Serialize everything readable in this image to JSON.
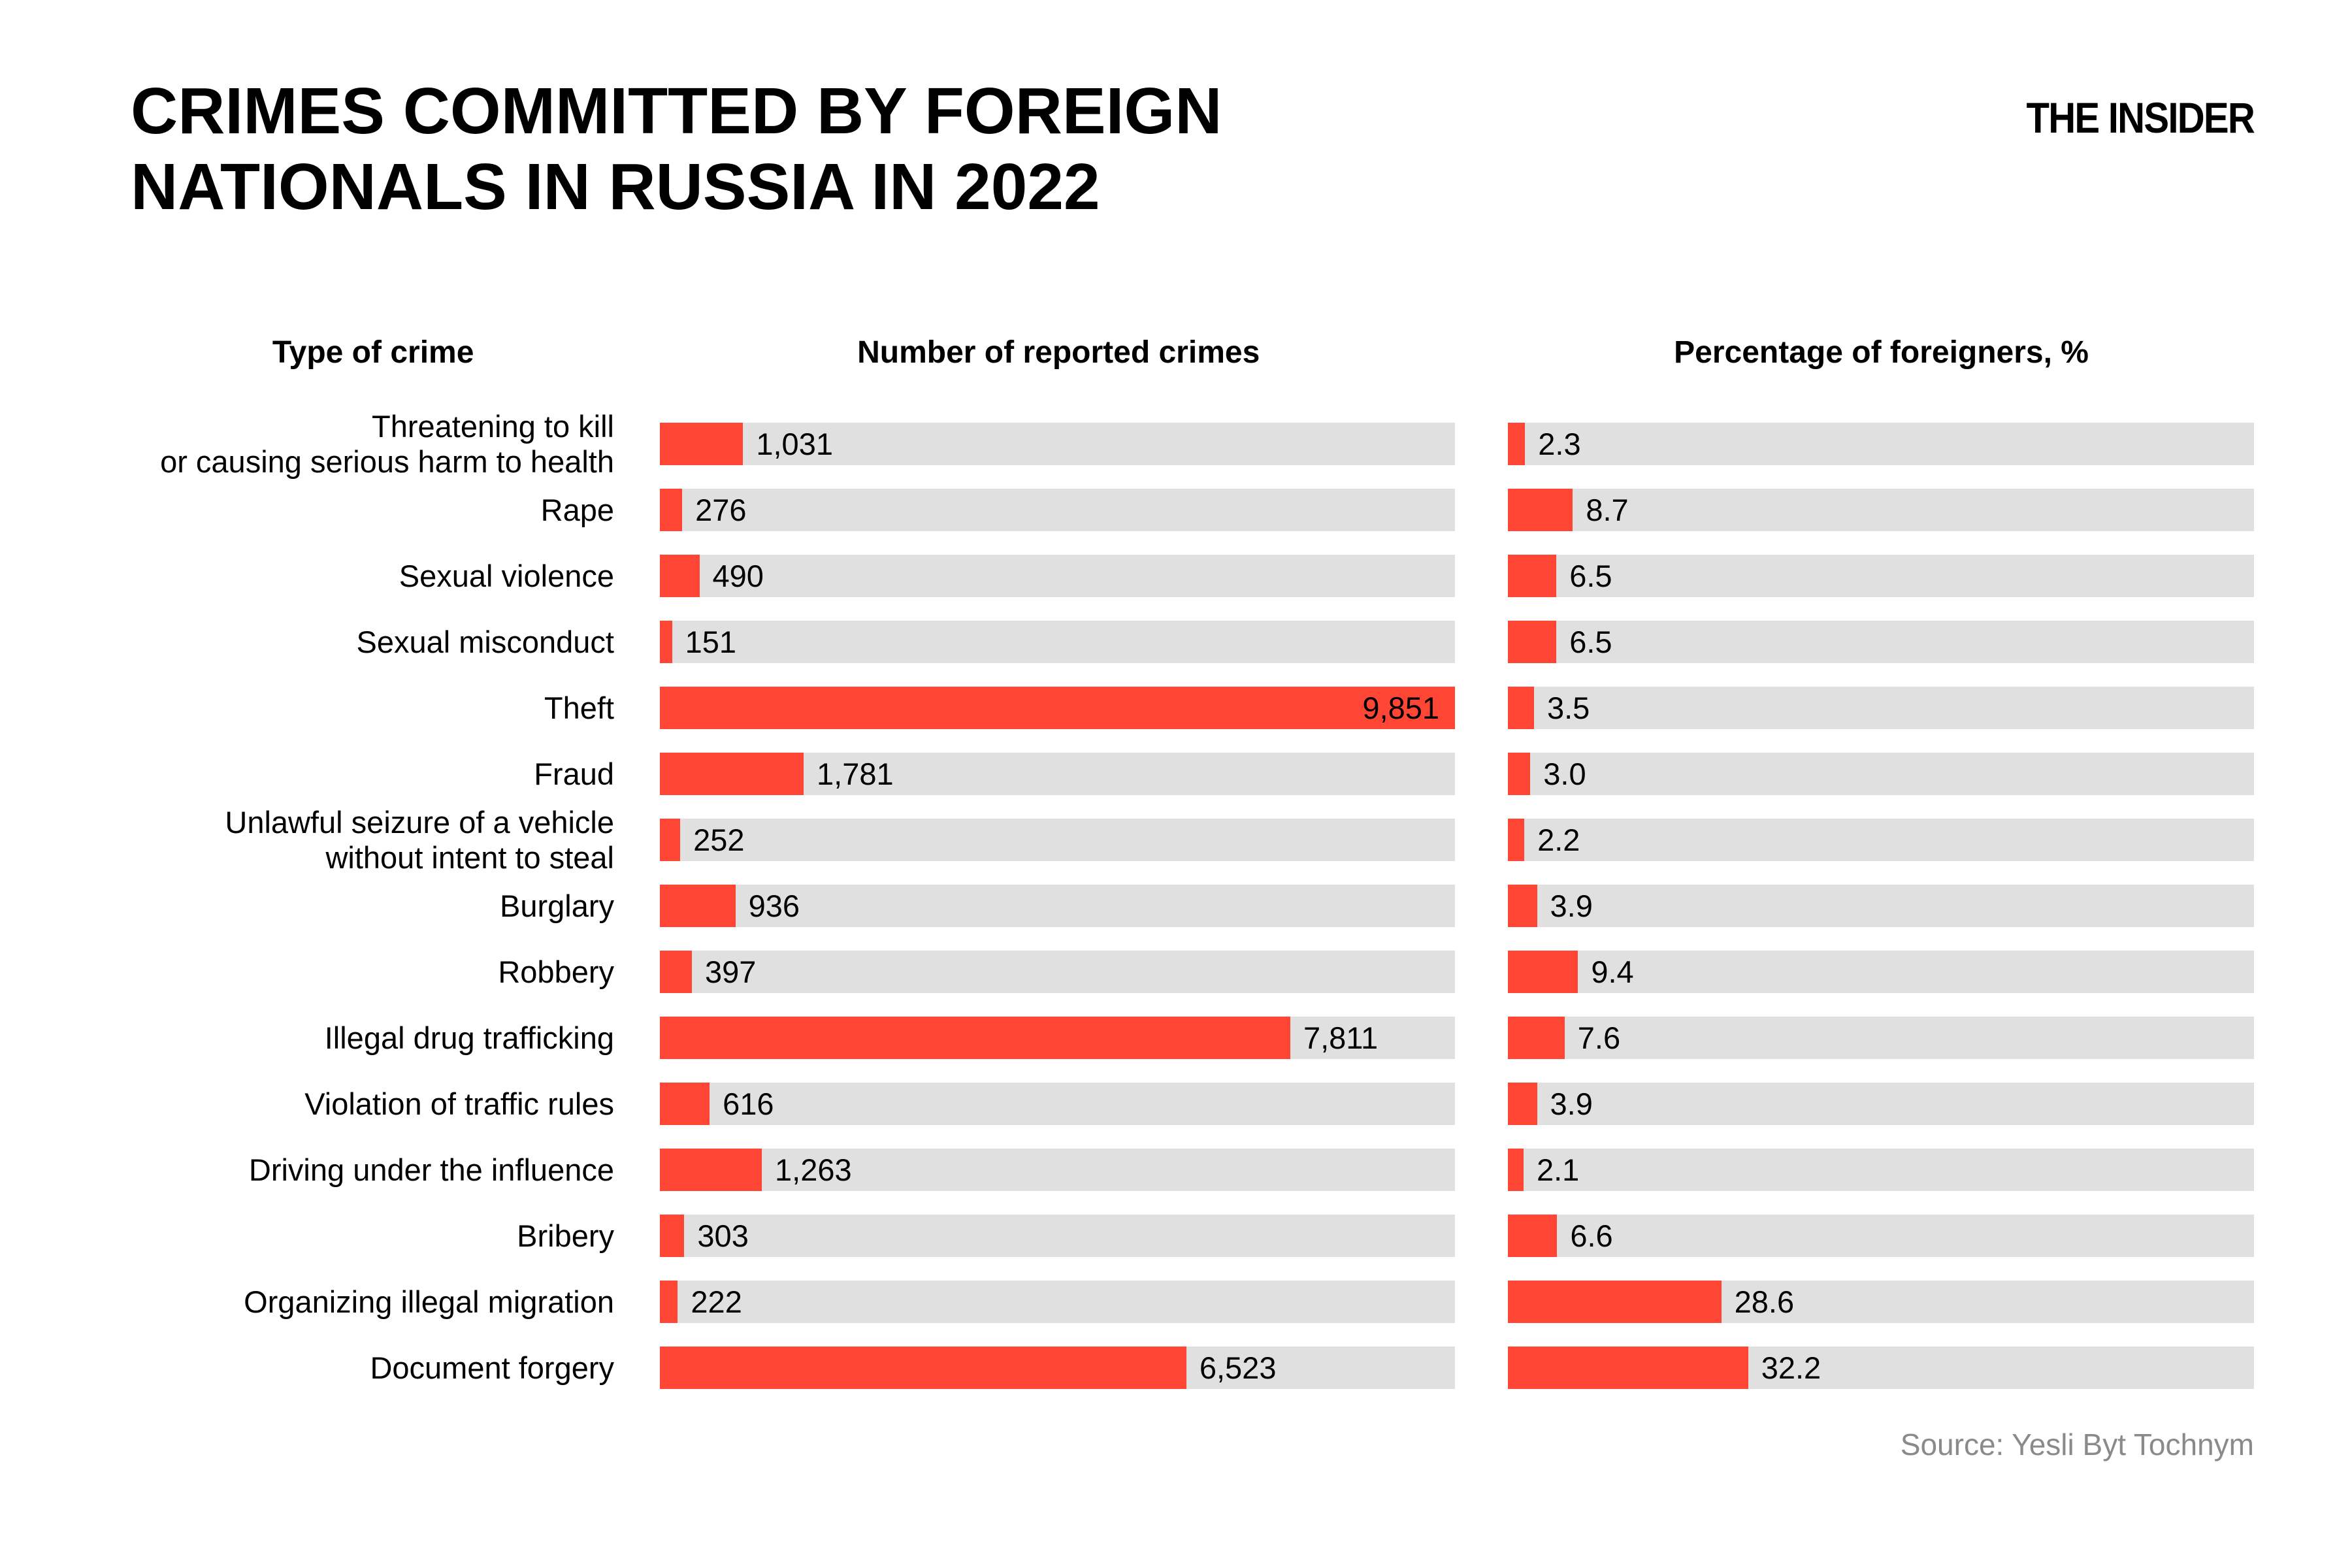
{
  "header": {
    "title": "CRIMES COMMITTED BY FOREIGN\nNATIONALS IN RUSSIA IN 2022",
    "logo": "THE INSIDER"
  },
  "footer": {
    "source": "Source: Yesli Byt Tochnym"
  },
  "colors": {
    "bar_red": "#ff4533",
    "track_gray": "#e0e0e0",
    "text_black": "#000000",
    "source_gray": "#8a8a8a"
  },
  "chart_data": {
    "type": "bar",
    "orientation": "horizontal",
    "title": "CRIMES COMMITTED BY FOREIGN NATIONALS IN RUSSIA IN 2022",
    "columns": [
      "Type of crime",
      "Number of reported crimes",
      "Percentage of foreigners, %"
    ],
    "legend": "none",
    "grid": false,
    "count_axis_max": 9851,
    "pct_axis_max": 100,
    "rows": [
      {
        "label": "Threatening to kill\nor causing serious harm to health",
        "count": 1031,
        "count_label": "1,031",
        "pct": 2.3,
        "pct_label": "2.3"
      },
      {
        "label": "Rape",
        "count": 276,
        "count_label": "276",
        "pct": 8.7,
        "pct_label": "8.7"
      },
      {
        "label": "Sexual violence",
        "count": 490,
        "count_label": "490",
        "pct": 6.5,
        "pct_label": "6.5"
      },
      {
        "label": "Sexual misconduct",
        "count": 151,
        "count_label": "151",
        "pct": 6.5,
        "pct_label": "6.5"
      },
      {
        "label": "Theft",
        "count": 9851,
        "count_label": "9,851",
        "pct": 3.5,
        "pct_label": "3.5"
      },
      {
        "label": "Fraud",
        "count": 1781,
        "count_label": "1,781",
        "pct": 3.0,
        "pct_label": "3.0"
      },
      {
        "label": "Unlawful seizure of a vehicle\nwithout intent to steal",
        "count": 252,
        "count_label": "252",
        "pct": 2.2,
        "pct_label": "2.2"
      },
      {
        "label": "Burglary",
        "count": 936,
        "count_label": "936",
        "pct": 3.9,
        "pct_label": "3.9"
      },
      {
        "label": "Robbery",
        "count": 397,
        "count_label": "397",
        "pct": 9.4,
        "pct_label": "9.4"
      },
      {
        "label": "Illegal drug trafficking",
        "count": 7811,
        "count_label": "7,811",
        "pct": 7.6,
        "pct_label": "7.6"
      },
      {
        "label": "Violation of traffic rules",
        "count": 616,
        "count_label": "616",
        "pct": 3.9,
        "pct_label": "3.9"
      },
      {
        "label": "Driving under the influence",
        "count": 1263,
        "count_label": "1,263",
        "pct": 2.1,
        "pct_label": "2.1"
      },
      {
        "label": "Bribery",
        "count": 303,
        "count_label": "303",
        "pct": 6.6,
        "pct_label": "6.6"
      },
      {
        "label": "Organizing illegal migration",
        "count": 222,
        "count_label": "222",
        "pct": 28.6,
        "pct_label": "28.6"
      },
      {
        "label": "Document forgery",
        "count": 6523,
        "count_label": "6,523",
        "pct": 32.2,
        "pct_label": "32.2"
      }
    ]
  }
}
